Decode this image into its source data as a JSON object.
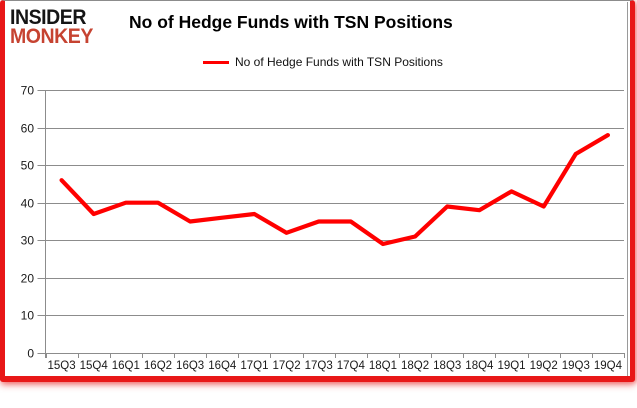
{
  "logo": {
    "line1": "INSIDER",
    "line2": "MONKEY"
  },
  "title": "No of Hedge Funds with TSN Positions",
  "legend": {
    "label": "No of Hedge Funds with TSN Positions",
    "color": "#ff0000"
  },
  "colors": {
    "line_red": "#ff0000",
    "logo_red": "#c64331",
    "frame_red": "#e81717",
    "grid_gray": "#8c8c8c",
    "label_text": "#1a1a1a"
  },
  "chart_data": {
    "type": "line",
    "title": "No of Hedge Funds with TSN Positions",
    "categories": [
      "15Q3",
      "15Q4",
      "16Q1",
      "16Q2",
      "16Q3",
      "16Q4",
      "17Q1",
      "17Q2",
      "17Q3",
      "17Q4",
      "18Q1",
      "18Q2",
      "18Q3",
      "18Q4",
      "19Q1",
      "19Q2",
      "19Q3",
      "19Q4"
    ],
    "series": [
      {
        "name": "No of Hedge Funds with TSN Positions",
        "color": "#ff0000",
        "values": [
          46,
          37,
          40,
          40,
          35,
          36,
          37,
          32,
          35,
          35,
          29,
          31,
          39,
          38,
          43,
          39,
          53,
          58
        ]
      }
    ],
    "xlabel": "",
    "ylabel": "",
    "ylim": [
      0,
      70
    ],
    "yticks": [
      0,
      10,
      20,
      30,
      40,
      50,
      60,
      70
    ],
    "grid": "horizontal",
    "gridline_color": "#8c8c8c",
    "legend_position": "top"
  }
}
